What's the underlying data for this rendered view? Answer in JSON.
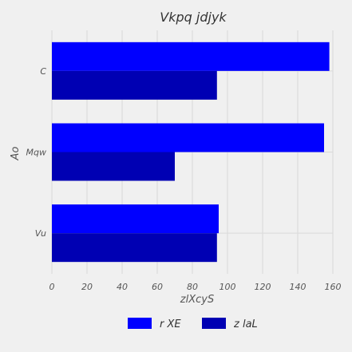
{
  "chart_data": {
    "type": "bar",
    "orientation": "horizontal",
    "title": "Vkpq   jdjyk",
    "xlabel": "zlXcyS",
    "ylabel": "Ao",
    "categories": [
      "Vu",
      "Mqw",
      "C"
    ],
    "series": [
      {
        "name": "r XE",
        "values": [
          95,
          155,
          158
        ],
        "color": "#0000ff"
      },
      {
        "name": "z laL",
        "values": [
          94,
          70,
          94
        ],
        "color": "#0000b3"
      }
    ],
    "xlim": [
      0,
      160
    ],
    "xticks": [
      "0",
      "20",
      "40",
      "60",
      "80",
      "100",
      "120",
      "140",
      "160"
    ],
    "grid": true,
    "legend_position": "bottom"
  }
}
